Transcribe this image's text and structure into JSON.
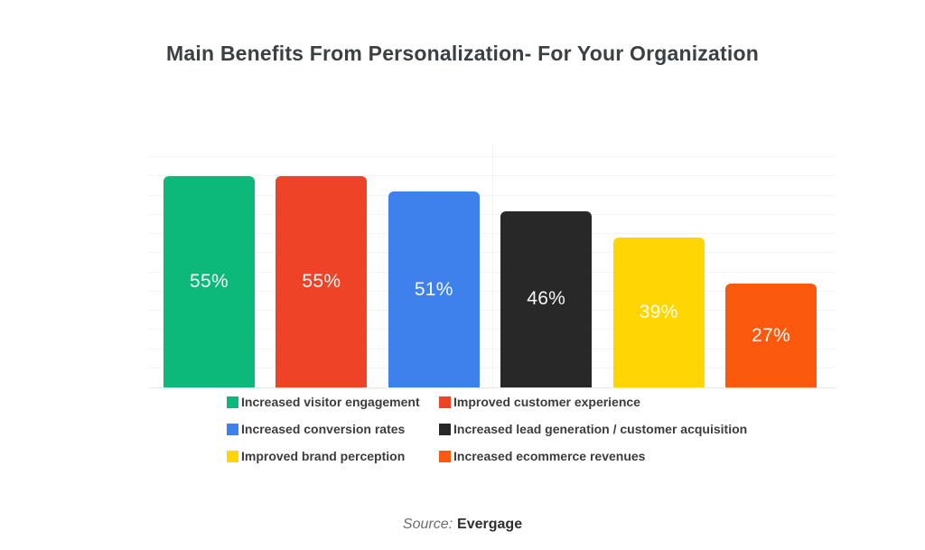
{
  "page": {
    "title": "Main Benefits From Personalization- For Your Organization",
    "source_label": "Source:",
    "source_value": "Evergage"
  },
  "chart_data": {
    "type": "bar",
    "title": "Main Benefits From Personalization- For Your Organization",
    "xlabel": "",
    "ylabel": "",
    "unit": "%",
    "ylim": [
      0,
      60
    ],
    "grid": {
      "horizontal": true,
      "step_pct": 5,
      "center_vertical_line": true
    },
    "legend_position": "bottom",
    "value_labels": "inside-center",
    "categories": [
      "Increased visitor engagement",
      "Improved customer experience",
      "Increased conversion rates",
      "Increased lead generation / customer acquisition",
      "Improved brand perception",
      "Increased ecommerce revenues"
    ],
    "values": [
      55,
      55,
      51,
      46,
      39,
      27
    ],
    "bars": [
      {
        "label": "Increased visitor engagement",
        "value": 55,
        "display": "55%",
        "color": "#0cb87a"
      },
      {
        "label": "Improved customer experience",
        "value": 55,
        "display": "55%",
        "color": "#ee4326"
      },
      {
        "label": "Increased conversion rates",
        "value": 51,
        "display": "51%",
        "color": "#3e81ec"
      },
      {
        "label": "Increased lead generation / customer acquisition",
        "value": 46,
        "display": "46%",
        "color": "#282828"
      },
      {
        "label": "Improved brand perception",
        "value": 39,
        "display": "39%",
        "color": "#ffd502"
      },
      {
        "label": "Increased ecommerce revenues",
        "value": 27,
        "display": "27%",
        "color": "#fb5a0e"
      }
    ]
  },
  "legend": {
    "items": [
      {
        "label": "Increased visitor engagement",
        "color": "#0cb87a"
      },
      {
        "label": "Improved customer experience",
        "color": "#ee4326"
      },
      {
        "label": "Increased conversion rates",
        "color": "#3e81ec"
      },
      {
        "label": "Increased lead generation / customer acquisition",
        "color": "#282828"
      },
      {
        "label": "Improved brand perception",
        "color": "#ffd502"
      },
      {
        "label": "Increased ecommerce revenues",
        "color": "#fb5a0e"
      }
    ]
  }
}
